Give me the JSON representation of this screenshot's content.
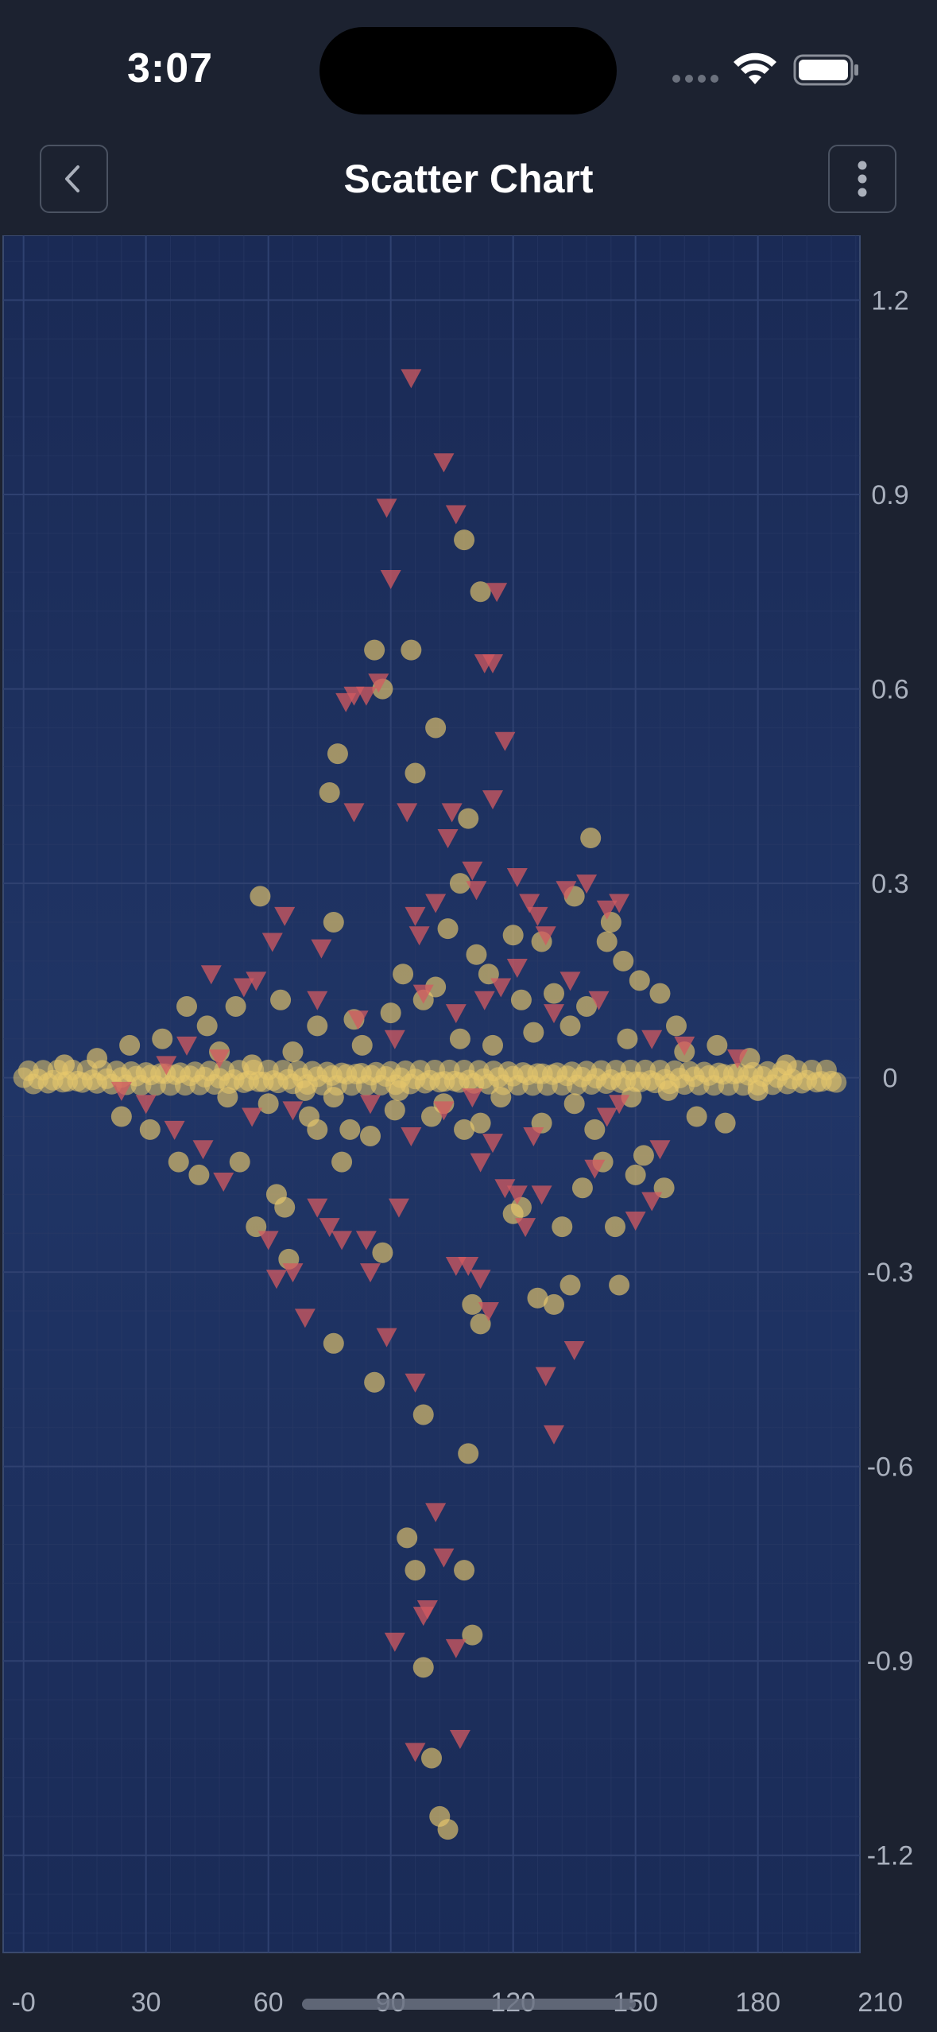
{
  "status_bar": {
    "time": "3:07"
  },
  "nav": {
    "title": "Scatter Chart",
    "back_icon": "chevron-left-icon",
    "menu_icon": "more-vertical-icon"
  },
  "colors": {
    "background": "#1c2230",
    "plot_background": "#1c2c58",
    "circle_series": "#e8c86c",
    "triangle_series": "#d35a60",
    "axis_text": "#a9b0bd"
  },
  "chart_data": {
    "type": "scatter",
    "title": "",
    "xlabel": "",
    "ylabel": "",
    "xlim": [
      -5,
      205
    ],
    "ylim": [
      -1.35,
      1.3
    ],
    "x_ticks": [
      "-0",
      "30",
      "60",
      "90",
      "120",
      "150",
      "180",
      "210"
    ],
    "y_ticks": [
      "1.2",
      "0.9",
      "0.6",
      "0.3",
      "0",
      "-0.3",
      "-0.6",
      "-0.9",
      "-1.2"
    ],
    "y_axis_position": "right",
    "grid": true,
    "legend": "none",
    "series": [
      {
        "marker": "circle",
        "color": "#e8c86c",
        "points": [
          [
            86,
            0.66
          ],
          [
            95,
            0.66
          ],
          [
            88,
            0.6
          ],
          [
            101,
            0.54
          ],
          [
            77,
            0.5
          ],
          [
            75,
            0.44
          ],
          [
            96,
            0.47
          ],
          [
            108,
            0.83
          ],
          [
            112,
            0.75
          ],
          [
            109,
            0.4
          ],
          [
            107,
            0.3
          ],
          [
            139,
            0.37
          ],
          [
            144,
            0.24
          ],
          [
            58,
            0.28
          ],
          [
            76,
            0.24
          ],
          [
            114,
            0.16
          ],
          [
            120,
            0.22
          ],
          [
            127,
            0.21
          ],
          [
            135,
            0.28
          ],
          [
            143,
            0.21
          ],
          [
            147,
            0.18
          ],
          [
            151,
            0.15
          ],
          [
            156,
            0.13
          ],
          [
            104,
            0.23
          ],
          [
            93,
            0.16
          ],
          [
            111,
            0.19
          ],
          [
            98,
            0.12
          ],
          [
            63,
            0.12
          ],
          [
            52,
            0.11
          ],
          [
            40,
            0.11
          ],
          [
            45,
            0.08
          ],
          [
            72,
            0.08
          ],
          [
            81,
            0.09
          ],
          [
            90,
            0.1
          ],
          [
            101,
            0.14
          ],
          [
            130,
            0.13
          ],
          [
            138,
            0.11
          ],
          [
            122,
            0.12
          ],
          [
            160,
            0.08
          ],
          [
            34,
            0.06
          ],
          [
            26,
            0.05
          ],
          [
            18,
            0.03
          ],
          [
            10,
            0.02
          ],
          [
            170,
            0.05
          ],
          [
            178,
            0.03
          ],
          [
            187,
            0.02
          ],
          [
            148,
            0.06
          ],
          [
            162,
            0.04
          ],
          [
            66,
            0.04
          ],
          [
            83,
            0.05
          ],
          [
            107,
            0.06
          ],
          [
            115,
            0.05
          ],
          [
            125,
            0.07
          ],
          [
            134,
            0.08
          ],
          [
            56,
            0.02
          ],
          [
            48,
            0.04
          ],
          [
            24,
            -0.06
          ],
          [
            31,
            -0.08
          ],
          [
            38,
            -0.13
          ],
          [
            43,
            -0.15
          ],
          [
            53,
            -0.13
          ],
          [
            57,
            -0.23
          ],
          [
            62,
            -0.18
          ],
          [
            64,
            -0.2
          ],
          [
            65,
            -0.28
          ],
          [
            70,
            -0.06
          ],
          [
            72,
            -0.08
          ],
          [
            78,
            -0.13
          ],
          [
            80,
            -0.08
          ],
          [
            85,
            -0.09
          ],
          [
            88,
            -0.27
          ],
          [
            91,
            -0.05
          ],
          [
            100,
            -0.06
          ],
          [
            103,
            -0.04
          ],
          [
            108,
            -0.08
          ],
          [
            112,
            -0.07
          ],
          [
            120,
            -0.21
          ],
          [
            122,
            -0.2
          ],
          [
            126,
            -0.34
          ],
          [
            127,
            -0.07
          ],
          [
            130,
            -0.35
          ],
          [
            132,
            -0.23
          ],
          [
            134,
            -0.32
          ],
          [
            137,
            -0.17
          ],
          [
            140,
            -0.08
          ],
          [
            142,
            -0.13
          ],
          [
            145,
            -0.23
          ],
          [
            146,
            -0.32
          ],
          [
            150,
            -0.15
          ],
          [
            152,
            -0.12
          ],
          [
            157,
            -0.17
          ],
          [
            165,
            -0.06
          ],
          [
            172,
            -0.07
          ],
          [
            110,
            -0.35
          ],
          [
            112,
            -0.38
          ],
          [
            76,
            -0.41
          ],
          [
            86,
            -0.47
          ],
          [
            98,
            -0.52
          ],
          [
            109,
            -0.58
          ],
          [
            94,
            -0.71
          ],
          [
            96,
            -0.76
          ],
          [
            108,
            -0.76
          ],
          [
            110,
            -0.86
          ],
          [
            98,
            -0.91
          ],
          [
            100,
            -1.05
          ],
          [
            102,
            -1.14
          ],
          [
            104,
            -1.16
          ],
          [
            50,
            -0.03
          ],
          [
            60,
            -0.04
          ],
          [
            69,
            -0.02
          ],
          [
            76,
            -0.03
          ],
          [
            92,
            -0.02
          ],
          [
            117,
            -0.03
          ],
          [
            135,
            -0.04
          ],
          [
            149,
            -0.03
          ],
          [
            158,
            -0.02
          ],
          [
            180,
            -0.02
          ]
        ],
        "dense_band": {
          "x_from": 0,
          "x_to": 200,
          "y_from": -0.02,
          "y_to": 0.02
        }
      },
      {
        "marker": "triangle-down",
        "color": "#d35a60",
        "points": [
          [
            95,
            1.08
          ],
          [
            103,
            0.95
          ],
          [
            106,
            0.87
          ],
          [
            89,
            0.88
          ],
          [
            90,
            0.77
          ],
          [
            116,
            0.75
          ],
          [
            113,
            0.64
          ],
          [
            115,
            0.64
          ],
          [
            87,
            0.61
          ],
          [
            84,
            0.59
          ],
          [
            81,
            0.59
          ],
          [
            79,
            0.58
          ],
          [
            118,
            0.52
          ],
          [
            115,
            0.43
          ],
          [
            81,
            0.41
          ],
          [
            94,
            0.41
          ],
          [
            105,
            0.41
          ],
          [
            104,
            0.37
          ],
          [
            110,
            0.32
          ],
          [
            111,
            0.29
          ],
          [
            121,
            0.31
          ],
          [
            124,
            0.27
          ],
          [
            126,
            0.25
          ],
          [
            133,
            0.29
          ],
          [
            138,
            0.3
          ],
          [
            143,
            0.26
          ],
          [
            146,
            0.27
          ],
          [
            128,
            0.22
          ],
          [
            121,
            0.17
          ],
          [
            117,
            0.14
          ],
          [
            101,
            0.27
          ],
          [
            96,
            0.25
          ],
          [
            97,
            0.22
          ],
          [
            73,
            0.2
          ],
          [
            64,
            0.25
          ],
          [
            61,
            0.21
          ],
          [
            46,
            0.16
          ],
          [
            57,
            0.15
          ],
          [
            54,
            0.14
          ],
          [
            72,
            0.12
          ],
          [
            82,
            0.09
          ],
          [
            91,
            0.06
          ],
          [
            98,
            0.13
          ],
          [
            106,
            0.1
          ],
          [
            113,
            0.12
          ],
          [
            130,
            0.1
          ],
          [
            134,
            0.15
          ],
          [
            141,
            0.12
          ],
          [
            154,
            0.06
          ],
          [
            162,
            0.05
          ],
          [
            175,
            0.03
          ],
          [
            40,
            0.05
          ],
          [
            48,
            0.03
          ],
          [
            35,
            0.02
          ],
          [
            30,
            -0.04
          ],
          [
            37,
            -0.08
          ],
          [
            44,
            -0.11
          ],
          [
            49,
            -0.16
          ],
          [
            60,
            -0.25
          ],
          [
            62,
            -0.31
          ],
          [
            66,
            -0.3
          ],
          [
            69,
            -0.37
          ],
          [
            72,
            -0.2
          ],
          [
            75,
            -0.23
          ],
          [
            78,
            -0.25
          ],
          [
            84,
            -0.25
          ],
          [
            85,
            -0.3
          ],
          [
            92,
            -0.2
          ],
          [
            89,
            -0.4
          ],
          [
            96,
            -0.47
          ],
          [
            101,
            -0.67
          ],
          [
            103,
            -0.74
          ],
          [
            106,
            -0.88
          ],
          [
            98,
            -0.83
          ],
          [
            99,
            -0.82
          ],
          [
            91,
            -0.87
          ],
          [
            107,
            -1.02
          ],
          [
            96,
            -1.04
          ],
          [
            106,
            -0.29
          ],
          [
            109,
            -0.29
          ],
          [
            112,
            -0.31
          ],
          [
            114,
            -0.36
          ],
          [
            118,
            -0.17
          ],
          [
            121,
            -0.18
          ],
          [
            123,
            -0.23
          ],
          [
            127,
            -0.18
          ],
          [
            135,
            -0.42
          ],
          [
            128,
            -0.46
          ],
          [
            130,
            -0.55
          ],
          [
            150,
            -0.22
          ],
          [
            154,
            -0.19
          ],
          [
            156,
            -0.11
          ],
          [
            112,
            -0.13
          ],
          [
            115,
            -0.1
          ],
          [
            125,
            -0.09
          ],
          [
            140,
            -0.14
          ],
          [
            143,
            -0.06
          ],
          [
            146,
            -0.04
          ],
          [
            85,
            -0.04
          ],
          [
            95,
            -0.09
          ],
          [
            103,
            -0.05
          ],
          [
            110,
            -0.03
          ],
          [
            56,
            -0.06
          ],
          [
            66,
            -0.05
          ],
          [
            24,
            -0.02
          ]
        ]
      }
    ]
  }
}
